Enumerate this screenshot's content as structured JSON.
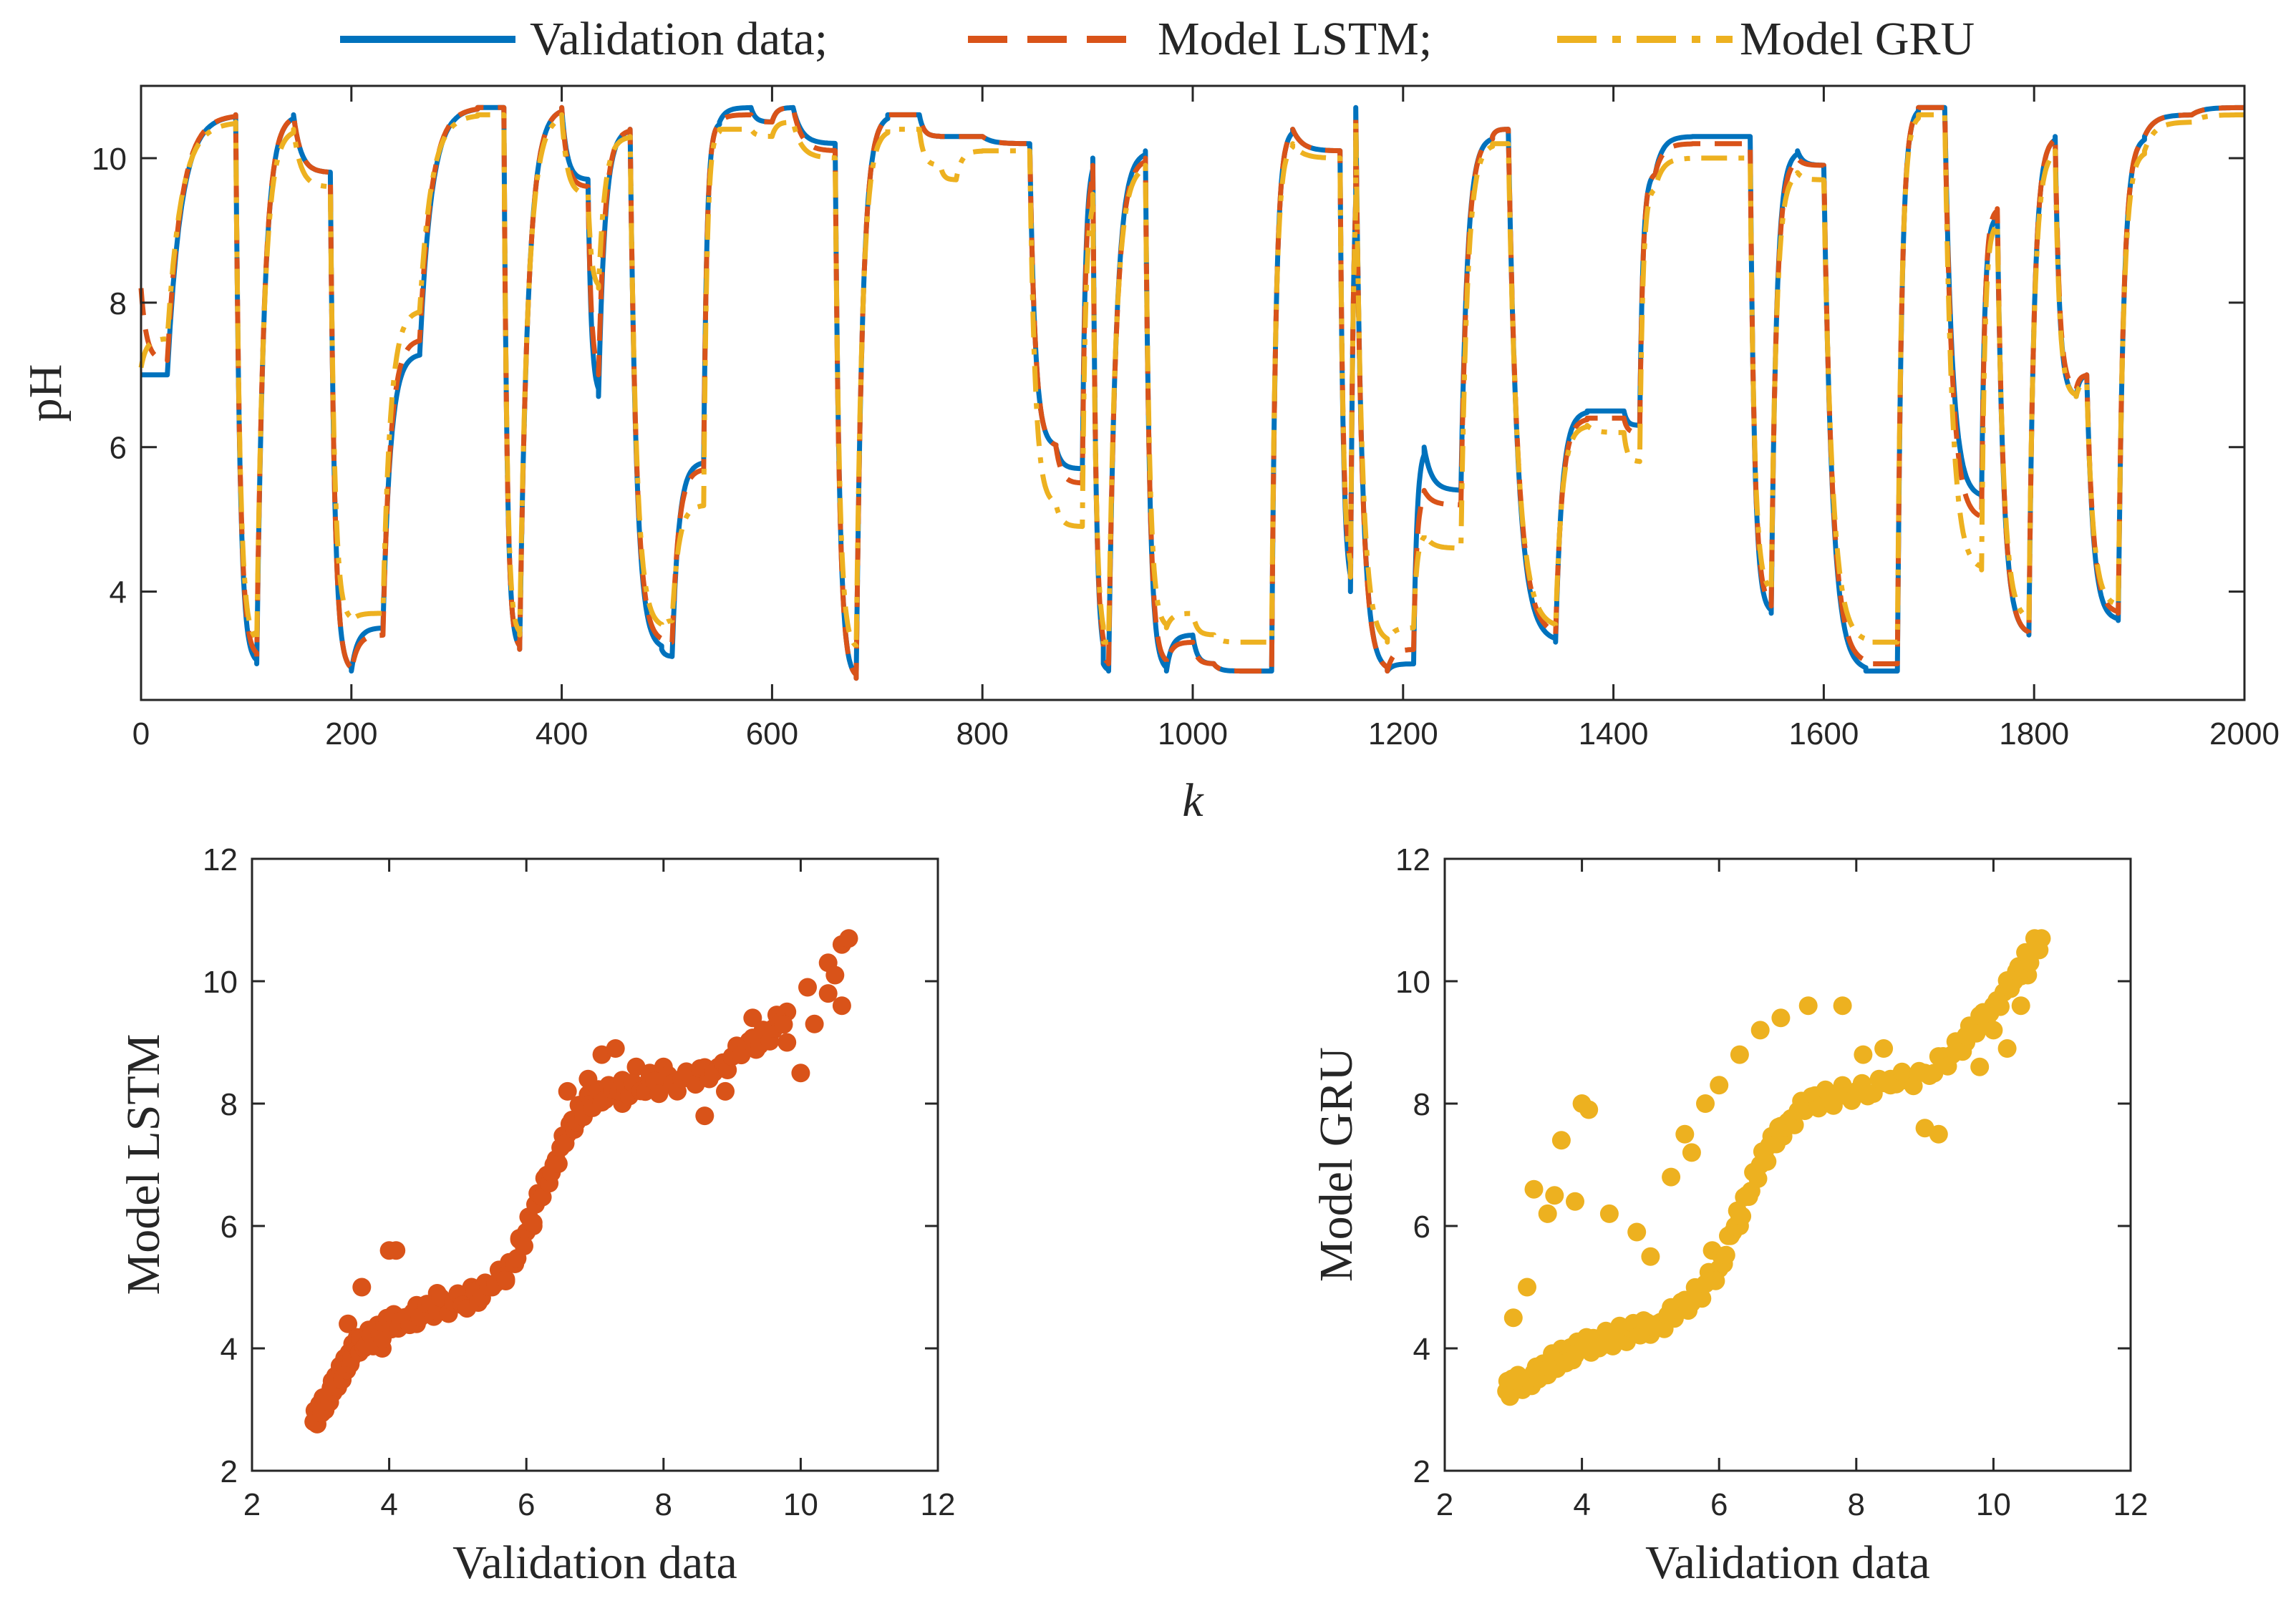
{
  "colors": {
    "validation": "#0072BD",
    "lstm": "#D95319",
    "gru": "#EDB120",
    "axis": "#262626",
    "background": "#ffffff"
  },
  "chart_data": [
    {
      "type": "line",
      "title": "",
      "xlabel": "k",
      "ylabel": "pH",
      "xlim": [
        0,
        2000
      ],
      "ylim": [
        2.5,
        11.0
      ],
      "xticks": [
        0,
        200,
        400,
        600,
        800,
        1000,
        1200,
        1400,
        1600,
        1800,
        2000
      ],
      "yticks": [
        4,
        6,
        8,
        10
      ],
      "legend": {
        "placement": "top-center",
        "entries": [
          "Validation data;",
          "Model LSTM;",
          "Model GRU"
        ]
      },
      "x_segments": [
        [
          0,
          25
        ],
        [
          25,
          90
        ],
        [
          90,
          110
        ],
        [
          110,
          145
        ],
        [
          145,
          180
        ],
        [
          180,
          200
        ],
        [
          200,
          230
        ],
        [
          230,
          265
        ],
        [
          265,
          320
        ],
        [
          320,
          345
        ],
        [
          345,
          360
        ],
        [
          360,
          400
        ],
        [
          400,
          425
        ],
        [
          425,
          435
        ],
        [
          435,
          465
        ],
        [
          465,
          495
        ],
        [
          495,
          505
        ],
        [
          505,
          535
        ],
        [
          535,
          550
        ],
        [
          550,
          580
        ],
        [
          580,
          600
        ],
        [
          600,
          620
        ],
        [
          620,
          660
        ],
        [
          660,
          680
        ],
        [
          680,
          710
        ],
        [
          710,
          740
        ],
        [
          740,
          760
        ],
        [
          760,
          775
        ],
        [
          775,
          800
        ],
        [
          800,
          845
        ],
        [
          845,
          870
        ],
        [
          870,
          895
        ],
        [
          895,
          905
        ],
        [
          905,
          915
        ],
        [
          915,
          920
        ],
        [
          920,
          955
        ],
        [
          955,
          975
        ],
        [
          975,
          1000
        ],
        [
          1000,
          1020
        ],
        [
          1020,
          1045
        ],
        [
          1045,
          1075
        ],
        [
          1075,
          1095
        ],
        [
          1095,
          1140
        ],
        [
          1140,
          1150
        ],
        [
          1150,
          1155
        ],
        [
          1155,
          1185
        ],
        [
          1185,
          1210
        ],
        [
          1210,
          1220
        ],
        [
          1220,
          1255
        ],
        [
          1255,
          1285
        ],
        [
          1285,
          1300
        ],
        [
          1300,
          1345
        ],
        [
          1345,
          1375
        ],
        [
          1375,
          1410
        ],
        [
          1410,
          1425
        ],
        [
          1425,
          1440
        ],
        [
          1440,
          1475
        ],
        [
          1475,
          1530
        ],
        [
          1530,
          1550
        ],
        [
          1550,
          1575
        ],
        [
          1575,
          1600
        ],
        [
          1600,
          1640
        ],
        [
          1640,
          1670
        ],
        [
          1670,
          1690
        ],
        [
          1690,
          1715
        ],
        [
          1715,
          1750
        ],
        [
          1750,
          1765
        ],
        [
          1765,
          1795
        ],
        [
          1795,
          1820
        ],
        [
          1820,
          1840
        ],
        [
          1840,
          1850
        ],
        [
          1850,
          1880
        ],
        [
          1880,
          1905
        ],
        [
          1905,
          1950
        ],
        [
          1950,
          2000
        ]
      ],
      "series": [
        {
          "name": "Validation data",
          "style": "solid",
          "start": 7.0,
          "values": [
            7.0,
            10.6,
            3.0,
            10.6,
            9.8,
            2.9,
            3.5,
            7.3,
            10.7,
            10.7,
            3.2,
            10.7,
            9.7,
            6.7,
            10.4,
            3.2,
            3.1,
            5.8,
            10.5,
            10.7,
            10.5,
            10.7,
            10.2,
            2.8,
            10.6,
            10.6,
            10.3,
            10.3,
            10.3,
            10.2,
            6.0,
            5.7,
            10.0,
            3.0,
            2.9,
            10.1,
            2.9,
            3.4,
            3.0,
            2.9,
            2.9,
            10.4,
            10.1,
            4.0,
            10.7,
            2.9,
            3.0,
            6.0,
            5.4,
            10.3,
            10.4,
            3.3,
            6.5,
            6.5,
            6.3,
            9.8,
            10.3,
            10.3,
            3.7,
            10.1,
            9.9,
            2.9,
            2.9,
            10.7,
            10.7,
            5.3,
            9.2,
            3.4,
            10.3,
            6.7,
            7.0,
            3.6,
            10.3,
            10.6,
            10.7
          ]
        },
        {
          "name": "Model LSTM",
          "style": "dashed",
          "start": 8.2,
          "values": [
            7.2,
            10.6,
            3.1,
            10.6,
            9.8,
            2.9,
            3.4,
            7.5,
            10.7,
            10.7,
            3.2,
            10.7,
            9.6,
            7.0,
            10.4,
            3.3,
            3.3,
            5.7,
            10.5,
            10.6,
            10.5,
            10.7,
            10.1,
            2.8,
            10.6,
            10.6,
            10.3,
            10.3,
            10.3,
            10.2,
            6.0,
            5.5,
            9.9,
            3.1,
            3.0,
            10.0,
            3.0,
            3.3,
            3.0,
            2.9,
            2.9,
            10.4,
            10.1,
            4.2,
            10.6,
            2.9,
            3.2,
            5.4,
            5.2,
            10.3,
            10.4,
            3.4,
            6.4,
            6.4,
            6.2,
            9.8,
            10.2,
            10.2,
            3.8,
            10.0,
            9.9,
            3.0,
            3.0,
            10.7,
            10.7,
            5.0,
            9.3,
            3.4,
            10.3,
            6.8,
            7.0,
            3.7,
            10.3,
            10.6,
            10.7
          ]
        },
        {
          "name": "Model GRU",
          "style": "dashdot",
          "start": 7.1,
          "values": [
            7.5,
            10.5,
            3.3,
            10.4,
            9.6,
            3.6,
            3.7,
            7.9,
            10.6,
            10.6,
            3.4,
            10.6,
            9.5,
            8.2,
            10.3,
            3.5,
            3.6,
            5.2,
            10.4,
            10.4,
            10.3,
            10.5,
            10.0,
            3.2,
            10.4,
            10.4,
            9.9,
            9.7,
            10.1,
            10.1,
            5.2,
            4.9,
            9.5,
            3.3,
            3.3,
            9.9,
            3.5,
            3.7,
            3.4,
            3.3,
            3.3,
            10.2,
            10.0,
            4.2,
            10.5,
            3.3,
            3.5,
            4.8,
            4.6,
            10.2,
            10.2,
            3.5,
            6.3,
            6.2,
            5.8,
            9.6,
            10.0,
            10.0,
            4.0,
            9.8,
            9.7,
            3.3,
            3.3,
            10.6,
            10.6,
            4.3,
            9.1,
            3.6,
            10.1,
            6.7,
            6.9,
            3.8,
            10.1,
            10.5,
            10.6
          ]
        }
      ]
    },
    {
      "type": "scatter",
      "title": "",
      "xlabel": "Validation data",
      "ylabel": "Model LSTM",
      "xlim": [
        2,
        12
      ],
      "ylim": [
        2,
        12
      ],
      "xticks": [
        2,
        4,
        6,
        8,
        10,
        12
      ],
      "yticks": [
        2,
        4,
        6,
        8,
        10,
        12
      ],
      "series": [
        {
          "name": "Model LSTM",
          "color_key": "lstm",
          "points": [
            [
              2.9,
              2.8
            ],
            [
              3.0,
              3.0
            ],
            [
              3.1,
              3.2
            ],
            [
              3.2,
              3.4
            ],
            [
              3.3,
              3.6
            ],
            [
              3.4,
              3.8
            ],
            [
              3.5,
              4.0
            ],
            [
              3.6,
              4.1
            ],
            [
              3.8,
              4.2
            ],
            [
              4.0,
              4.4
            ],
            [
              4.2,
              4.5
            ],
            [
              4.5,
              4.6
            ],
            [
              4.8,
              4.7
            ],
            [
              5.2,
              4.8
            ],
            [
              5.5,
              5.0
            ],
            [
              5.8,
              5.4
            ],
            [
              6.0,
              5.9
            ],
            [
              6.2,
              6.5
            ],
            [
              6.4,
              7.0
            ],
            [
              6.6,
              7.5
            ],
            [
              6.8,
              7.9
            ],
            [
              7.0,
              8.1
            ],
            [
              7.3,
              8.2
            ],
            [
              7.6,
              8.3
            ],
            [
              8.0,
              8.3
            ],
            [
              8.4,
              8.4
            ],
            [
              8.8,
              8.6
            ],
            [
              9.2,
              8.9
            ],
            [
              9.5,
              9.1
            ],
            [
              9.8,
              9.5
            ],
            [
              10.1,
              9.9
            ],
            [
              10.4,
              10.3
            ],
            [
              10.6,
              10.6
            ],
            [
              10.7,
              10.7
            ],
            [
              3.4,
              4.4
            ],
            [
              3.6,
              5.0
            ],
            [
              4.0,
              5.6
            ],
            [
              4.1,
              5.6
            ],
            [
              4.4,
              4.4
            ],
            [
              5.2,
              5.0
            ],
            [
              5.7,
              5.1
            ],
            [
              6.1,
              6.0
            ],
            [
              6.6,
              8.2
            ],
            [
              6.9,
              8.4
            ],
            [
              7.1,
              8.8
            ],
            [
              7.3,
              8.9
            ],
            [
              7.6,
              8.6
            ],
            [
              8.0,
              8.6
            ],
            [
              8.6,
              7.8
            ],
            [
              8.9,
              8.2
            ],
            [
              9.3,
              9.4
            ],
            [
              9.6,
              9.2
            ],
            [
              9.8,
              9.0
            ],
            [
              10.0,
              8.5
            ],
            [
              10.2,
              9.3
            ],
            [
              10.4,
              9.8
            ],
            [
              10.5,
              10.1
            ],
            [
              10.6,
              9.6
            ],
            [
              7.8,
              8.5
            ],
            [
              7.4,
              8.0
            ],
            [
              6.3,
              6.8
            ],
            [
              5.9,
              5.8
            ],
            [
              4.7,
              4.9
            ],
            [
              3.9,
              4.0
            ],
            [
              3.7,
              4.3
            ]
          ]
        }
      ]
    },
    {
      "type": "scatter",
      "title": "",
      "xlabel": "Validation data",
      "ylabel": "Model GRU",
      "xlim": [
        2,
        12
      ],
      "ylim": [
        2,
        12
      ],
      "xticks": [
        2,
        4,
        6,
        8,
        10,
        12
      ],
      "yticks": [
        2,
        4,
        6,
        8,
        10,
        12
      ],
      "series": [
        {
          "name": "Model GRU",
          "color_key": "gru",
          "points": [
            [
              2.9,
              3.3
            ],
            [
              3.0,
              3.4
            ],
            [
              3.2,
              3.5
            ],
            [
              3.4,
              3.6
            ],
            [
              3.6,
              3.8
            ],
            [
              3.8,
              3.9
            ],
            [
              4.0,
              4.0
            ],
            [
              4.2,
              4.1
            ],
            [
              4.5,
              4.2
            ],
            [
              4.8,
              4.3
            ],
            [
              5.1,
              4.4
            ],
            [
              5.4,
              4.6
            ],
            [
              5.7,
              4.9
            ],
            [
              6.0,
              5.3
            ],
            [
              6.2,
              5.9
            ],
            [
              6.4,
              6.5
            ],
            [
              6.6,
              7.0
            ],
            [
              6.8,
              7.4
            ],
            [
              7.0,
              7.7
            ],
            [
              7.3,
              8.0
            ],
            [
              7.6,
              8.1
            ],
            [
              8.0,
              8.2
            ],
            [
              8.5,
              8.3
            ],
            [
              9.0,
              8.5
            ],
            [
              9.4,
              8.8
            ],
            [
              9.7,
              9.2
            ],
            [
              10.0,
              9.6
            ],
            [
              10.3,
              10.0
            ],
            [
              10.5,
              10.4
            ],
            [
              10.7,
              10.7
            ],
            [
              3.0,
              4.5
            ],
            [
              3.2,
              5.0
            ],
            [
              3.3,
              6.6
            ],
            [
              3.5,
              6.2
            ],
            [
              3.6,
              6.5
            ],
            [
              3.7,
              7.4
            ],
            [
              4.0,
              8.0
            ],
            [
              4.1,
              7.9
            ],
            [
              3.9,
              6.4
            ],
            [
              4.4,
              6.2
            ],
            [
              4.8,
              5.9
            ],
            [
              5.0,
              5.5
            ],
            [
              5.3,
              6.8
            ],
            [
              5.5,
              7.5
            ],
            [
              5.6,
              7.2
            ],
            [
              5.8,
              8.0
            ],
            [
              6.0,
              8.3
            ],
            [
              6.3,
              8.8
            ],
            [
              6.6,
              9.2
            ],
            [
              6.9,
              9.4
            ],
            [
              7.3,
              9.6
            ],
            [
              7.8,
              9.6
            ],
            [
              8.1,
              8.8
            ],
            [
              8.5,
              8.4
            ],
            [
              9.0,
              7.6
            ],
            [
              9.2,
              7.5
            ],
            [
              9.6,
              9.0
            ],
            [
              9.8,
              8.6
            ],
            [
              10.0,
              9.2
            ],
            [
              10.2,
              8.9
            ],
            [
              10.4,
              9.6
            ],
            [
              10.5,
              10.1
            ],
            [
              10.6,
              10.5
            ],
            [
              8.4,
              8.9
            ],
            [
              6.3,
              6.0
            ],
            [
              5.9,
              5.6
            ]
          ]
        }
      ]
    }
  ]
}
